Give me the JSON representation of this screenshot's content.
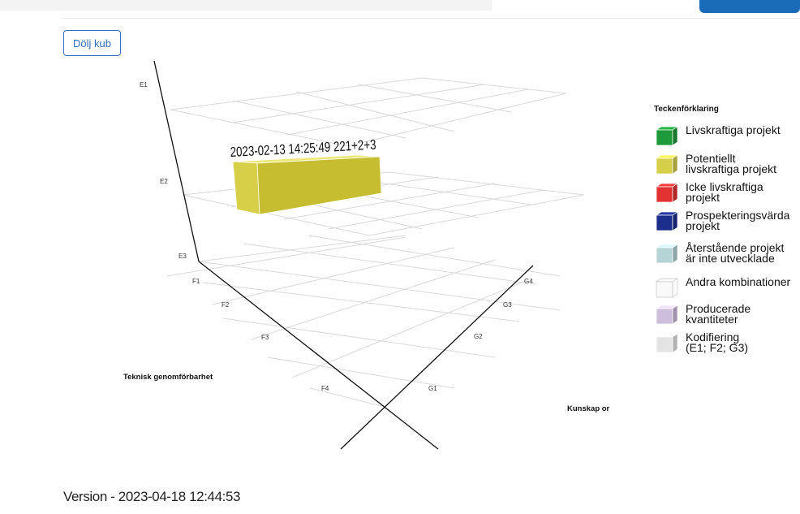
{
  "header": {
    "hide_cube_button": "Dölj kub"
  },
  "cube": {
    "e_labels": [
      "E1",
      "E2",
      "E3"
    ],
    "f_labels": [
      "F1",
      "F2",
      "F3",
      "F4"
    ],
    "g_labels": [
      "G1",
      "G2",
      "G3",
      "G4"
    ],
    "axis_f_title": "Teknisk genomförbarhet",
    "axis_g_title": "Kunskap or",
    "bar_label": "2023-02-13 14:25:49 221+2+3"
  },
  "legend": {
    "title": "Teckenförklaring",
    "items": [
      {
        "label": "Livskraftiga projekt",
        "color": "#1f9a3a",
        "icon": "cube-icon"
      },
      {
        "label": "Potentiellt\nlivskraftiga projekt",
        "color": "#d6cf4a",
        "icon": "cube-icon"
      },
      {
        "label": "Icke livskraftiga\nprojekt",
        "color": "#e23232",
        "icon": "cube-icon"
      },
      {
        "label": "Prospekteringsvärda\nprojekt",
        "color": "#1c2e8c",
        "icon": "cube-icon"
      },
      {
        "label": "Återstående projekt\när inte utvecklade",
        "color": "#b6d3d6",
        "icon": "cube-icon"
      },
      {
        "label": "Andra kombinationer",
        "color": "#f4f4f4",
        "icon": "cube-outline-icon"
      },
      {
        "label": "Producerade\nkvantiteter",
        "color": "#cdbfdc",
        "icon": "cube-icon"
      },
      {
        "label": "Kodifiering\n(E1; F2; G3)",
        "color": "#e4e4e4",
        "icon": "cube-icon"
      }
    ]
  },
  "footer": {
    "version": "Version - 2023-04-18 12:44:53"
  }
}
